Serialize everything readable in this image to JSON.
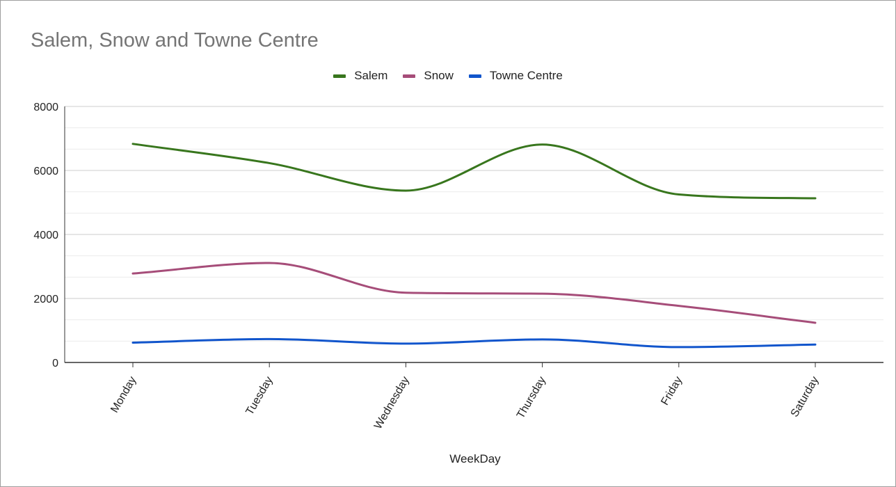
{
  "chart_data": {
    "type": "line",
    "title": "Salem, Snow and Towne Centre",
    "xlabel": "WeekDay",
    "ylabel": "",
    "categories": [
      "Monday",
      "Tuesday",
      "Wednesday",
      "Thursday",
      "Friday",
      "Saturday"
    ],
    "ylim": [
      0,
      8000
    ],
    "yticks": [
      "0",
      "2000",
      "4000",
      "6000",
      "8000"
    ],
    "grid": true,
    "legend_position": "top-center",
    "smooth": true,
    "series": [
      {
        "name": "Salem",
        "color": "#38761d",
        "values": [
          6830,
          6230,
          5370,
          6810,
          5250,
          5130
        ]
      },
      {
        "name": "Snow",
        "color": "#a64d79",
        "values": [
          2780,
          3110,
          2180,
          2150,
          1770,
          1240
        ]
      },
      {
        "name": "Towne Centre",
        "color": "#1155cc",
        "values": [
          620,
          730,
          590,
          720,
          480,
          560
        ]
      }
    ]
  }
}
